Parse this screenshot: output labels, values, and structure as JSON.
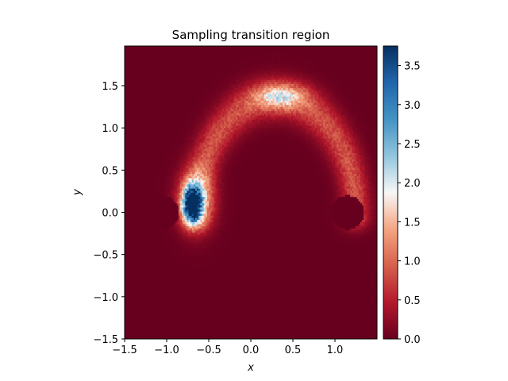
{
  "chart_data": {
    "type": "heatmap",
    "title": "Sampling transition region",
    "xlabel": "x",
    "ylabel": "y",
    "xlim": [
      -1.5,
      1.5
    ],
    "ylim": [
      -1.5,
      1.97
    ],
    "x_ticks": [
      -1.5,
      -1.0,
      -0.5,
      0.0,
      0.5,
      1.0
    ],
    "x_tick_labels": [
      "−1.5",
      "−1.0",
      "−0.5",
      "0.0",
      "0.5",
      "1.0"
    ],
    "y_ticks": [
      -1.5,
      -1.0,
      -0.5,
      0.0,
      0.5,
      1.0,
      1.5
    ],
    "y_tick_labels": [
      "−1.5",
      "−1.0",
      "−0.5",
      "0.0",
      "0.5",
      "1.0",
      "1.5"
    ],
    "colormap": "RdBu",
    "colorbar": {
      "range": [
        0.0,
        3.75
      ],
      "ticks": [
        0.0,
        0.5,
        1.0,
        1.5,
        2.0,
        2.5,
        3.0,
        3.5
      ],
      "tick_labels": [
        "0.0",
        "0.5",
        "1.0",
        "1.5",
        "2.0",
        "2.5",
        "3.0",
        "3.5"
      ]
    },
    "density_features": [
      {
        "kind": "peak",
        "center": [
          -0.7,
          0.1
        ],
        "spread": [
          0.1,
          0.2
        ],
        "value": 3.7
      },
      {
        "kind": "halo",
        "center": [
          -0.65,
          0.15
        ],
        "spread": [
          0.2,
          0.33
        ],
        "value": 1.4
      },
      {
        "kind": "arc-band",
        "center": [
          0.3,
          0.0
        ],
        "radii": [
          0.95,
          1.35
        ],
        "value": 0.85
      },
      {
        "kind": "arc-bump",
        "center": [
          0.35,
          1.38
        ],
        "spread": [
          0.3,
          0.15
        ],
        "value": 1.2
      },
      {
        "kind": "masked-disc",
        "center": [
          -1.05,
          0.0
        ],
        "radius": 0.2,
        "value": 0.0
      },
      {
        "kind": "masked-disc",
        "center": [
          1.15,
          0.0
        ],
        "radius": 0.2,
        "value": 0.0
      }
    ]
  }
}
